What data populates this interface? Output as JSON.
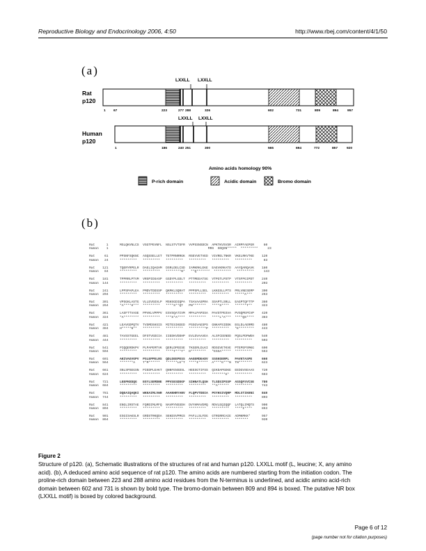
{
  "header": {
    "journal": "Reproductive Biology and Endocrinology",
    "citation": "2006, 4:50",
    "url": "http://www.rbej.com/content/4/1/50"
  },
  "figure": {
    "panel_a_label": "(a)",
    "panel_b_label": "(b)",
    "rat_label": [
      "Rat",
      "p120"
    ],
    "human_label": [
      "Human",
      "p120"
    ],
    "lxxll": "LXXLL",
    "rat_ticks": [
      "1",
      "67",
      "223",
      "277",
      "288",
      "326",
      "602",
      "731",
      "809",
      "894",
      "957"
    ],
    "human_ticks": [
      "1",
      "186",
      "240",
      "251",
      "300",
      "565",
      "694",
      "772",
      "857",
      "920"
    ],
    "homology": "Amino acids homology  90%",
    "legend": {
      "prich": "P-rich domain",
      "acidic": "Acidic domain",
      "bromo": "Bromo domain"
    }
  },
  "sequence": [
    {
      "label": "Rat      1",
      "text": "MSLQKVNLCS  VSGTPEVNFL  NSLSTVTSFR  VVPSSNSDCN  APKTKVSVSR  AIRPFAEPGR     60"
    },
    {
      "label": "Human    1",
      "text": "                                              MRS  SDQSN*****  *********     23"
    },
    {
      "label": "Rat     61",
      "text": "PPSNFSQKNC  ASQSSELLET  TETPRNRRGK  RSEVVETVED  VIVRELTNKR  VKELRKVTKE    120"
    },
    {
      "label": "Human   24",
      "text": "*********   *********   *********   *********   *********   *********      83"
    },
    {
      "label": "Rat    121",
      "text": "TQERYRPELR  DAELIQAGHM  DSRLDELCSD  IAMKRKLEKE  EAEVKRKATD  AAYQARQAVK    180"
    },
    {
      "label": "Human   84",
      "text": "*********   *********   ********N*   **Q*******  *********   *********     143"
    },
    {
      "label": "Rat    181",
      "text": "TPPRRLPTVM  VRSPIDSASP  GGDYPLGDLT  PTTMEEATSG  VTPGTLPSTP  VTSFPGIPDT    240"
    },
    {
      "label": "Human  144",
      "text": "*********   *********   *********   *********   *********   *********     203"
    },
    {
      "label": "Rat    241",
      "text": "LPPSPAPLEA  PMDVTDDSSP  QKMKLSQRAT  PPPSPLLSEL  LKKGSLLPTS  PRLVNESEMP    300"
    },
    {
      "label": "Human  204",
      "text": "*********   *********   *********   *********   *********   *****A***     263"
    },
    {
      "label": "Rat    301",
      "text": "VPSGKLASTG  VLLEVGGVLP  MSHSGDIQPA  TSAVAASPRA  SSAPTLSRLL  EAGPTQFTTP    360"
    },
    {
      "label": "Human  264",
      "text": "*A****H***  *********   ****S**QT   PN*******   ****S****   ******T**     323"
    },
    {
      "label": "Rat    361",
      "text": "LASFTTVASE  PPVKLVPPPV  ESVSQATIVM  MPALPAPSSA  PAVSTPESVA  PVSQPEPCVP    420"
    },
    {
      "label": "Human  324",
      "text": "*A********  *********   ***S*A****  *********   ****L*A***  ****QS****    383"
    },
    {
      "label": "Rat    421",
      "text": "LEAVGDPQTV  TVSMDSHSIS  MITESIKEED  PSSGVAESPS  GNKAPSIDDK  EGLDLAERMD    480"
    },
    {
      "label": "Human  384",
      "text": "H*****N**   *********   *********   *********P  *********   *E********    443"
    },
    {
      "label": "Rat    481",
      "text": "TAVSSTGEEL  DFSTVGDIIA  IIEDKVDDHP  EVLDVAAVEA  ALSFCEENDD  PQSLPDPWEH    540"
    },
    {
      "label": "Human  444",
      "text": "*********   *********   *********   *********   *********   *********     503"
    },
    {
      "label": "Rat    541",
      "text": "PIQQERDKPV  PLPAPEMTVK  QERLDPEESE  TKGERLDLKI  RDSGVETKVE  PTEPEPSMKG    600"
    },
    {
      "label": "Human  504",
      "text": "*********   *********   ****T***T*  D********   *ESSA*****  *********     563"
    },
    {
      "label": "Rat    601",
      "text": "AKIVAGVGPV  PSLEPPELRS  QDLDEEPESS  AAGEMDEADV  SSGKGERPL   PAVKTASPE     660"
    },
    {
      "label": "Human  564",
      "text": "*******A    T*M******   ******LG*T  ****I*****  A****G***N  TN*******     623"
    },
    {
      "label": "Rat    661",
      "text": "SNLSPSEGSN  PIEDPLEAKT  QNNFENSDSL  HEESGTIFSS  QIKDAPGEKE  EEDGVSEAAS    720"
    },
    {
      "label": "Human  624",
      "text": "*********   *********   *********   *********   *******G*   *********     683"
    },
    {
      "label": "Rat    721",
      "text": "LEEPKEDQG   EGYLSEMDNE  PPVSESDDGF  SIHNATLQSH  TLSDSIPSSP  ASSQFSVCSE    780"
    },
    {
      "label": "Human  684",
      "text": "*********   *********   *********   *********   **A******   *********     743"
    },
    {
      "label": "Rat    781",
      "text": "DQEAIQAQKI  WKKAIMLVWR  AAANHRYANV  FLQPVTDDIA  PGYHSIVQRP  MDLSTIKKNI    840"
    },
    {
      "label": "Human  744",
      "text": "*********   *********   *********   *********   *********   *********     803"
    },
    {
      "label": "Rat    841",
      "text": "ENGLIRSTAE  FQRDIMLMFQ  NAVMYNSSDH  DVYHMAVEMQ  RDVLEQIQQF  LATQLIMQTS    900"
    },
    {
      "label": "Human  804",
      "text": "*********   *********   *********   *********   *********   ****I****     863"
    },
    {
      "label": "Rat    901",
      "text": "ESGISAKSLR  GRDSTRKQDA  SEKDSVPMGS  PAFLLSLFDG  GTRGRRCAIE  ADMKMKK*      957"
    },
    {
      "label": "Human  864",
      "text": "*********   *********   *********   *********   *********   *******       920"
    }
  ],
  "caption": {
    "title": "Figure 2",
    "lines": [
      "Structure of p120. (a), Schematic illustrations of the structures of rat and human p120. LXXLL motif (L, leucine; X, any amino",
      "acid). (b), A deduced amino acid sequence of rat p120. The amino acids are numbered starting from the initiation codon. The",
      "proline-rich domain between 223 and 288 amino acid residues from the N-terminus is underlined, and acidic amino acid-rich",
      "domain between 602 and 731 is shown by bold type. The bromo-domain between 809 and 894 is boxed. The putative NR box",
      "(LXXLL motif) is boxed by colored background."
    ]
  },
  "footer": {
    "page": "Page 6 of 12",
    "note": "(page number not for citation purposes)"
  }
}
